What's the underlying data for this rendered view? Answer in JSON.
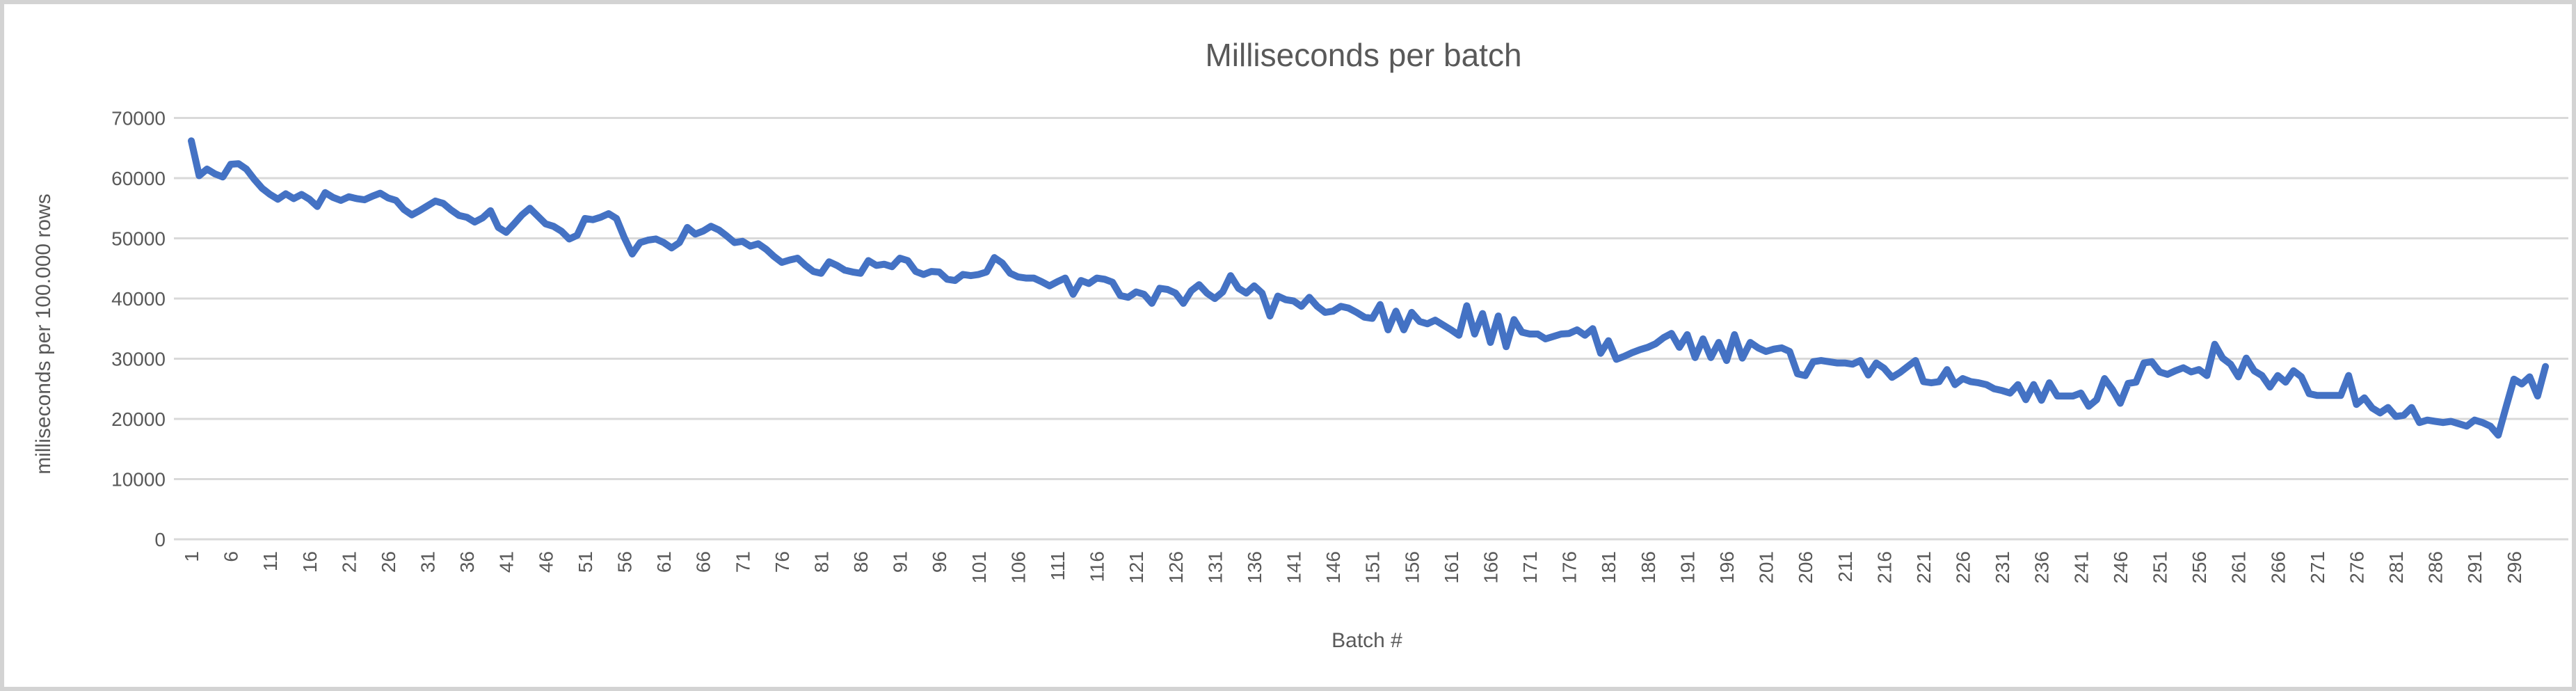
{
  "chart_data": {
    "type": "line",
    "title": "Milliseconds per batch",
    "xlabel": "Batch #",
    "ylabel": "milliseconds per 100.000 rows",
    "legend": "none",
    "grid": "horizontal",
    "ylim": [
      0,
      70000
    ],
    "y_ticks": [
      0,
      10000,
      20000,
      30000,
      40000,
      50000,
      60000,
      70000
    ],
    "x_tick_step": 5,
    "x_tick_labels": [
      "1",
      "6",
      "11",
      "16",
      "21",
      "26",
      "31",
      "36",
      "41",
      "46",
      "51",
      "56",
      "61",
      "66",
      "71",
      "76",
      "81",
      "86",
      "91",
      "96",
      "101",
      "106",
      "111",
      "116",
      "121",
      "126",
      "131",
      "136",
      "141",
      "146",
      "151",
      "156",
      "161",
      "166",
      "171",
      "176",
      "181",
      "186",
      "191",
      "196",
      "201",
      "206",
      "211",
      "216",
      "221",
      "226",
      "231",
      "236",
      "241",
      "246",
      "251",
      "256",
      "261",
      "266",
      "271",
      "276",
      "281",
      "286",
      "291",
      "296"
    ],
    "series": [
      {
        "name": "milliseconds per batch",
        "x_start": 1,
        "values": [
          66200,
          60400,
          61500,
          60700,
          60200,
          62300,
          62400,
          61500,
          59800,
          58300,
          57300,
          56500,
          57400,
          56600,
          57300,
          56500,
          55300,
          57600,
          56800,
          56300,
          56900,
          56600,
          56400,
          57000,
          57500,
          56700,
          56300,
          54800,
          53900,
          54600,
          55400,
          56200,
          55800,
          54700,
          53800,
          53500,
          52700,
          53400,
          54600,
          51800,
          51000,
          52400,
          53900,
          55000,
          53700,
          52400,
          52000,
          51200,
          49900,
          50500,
          53300,
          53100,
          53500,
          54100,
          53300,
          50100,
          47400,
          49300,
          49700,
          49900,
          49300,
          48400,
          49300,
          51800,
          50700,
          51200,
          52000,
          51400,
          50400,
          49300,
          49500,
          48700,
          49100,
          48200,
          47000,
          46000,
          46400,
          46700,
          45500,
          44500,
          44200,
          46100,
          45500,
          44700,
          44400,
          44200,
          46300,
          45500,
          45700,
          45300,
          46700,
          46300,
          44500,
          44000,
          44500,
          44400,
          43200,
          43000,
          44000,
          43800,
          44000,
          44400,
          46800,
          45900,
          44200,
          43600,
          43400,
          43400,
          42800,
          42100,
          42800,
          43400,
          40700,
          43000,
          42500,
          43400,
          43200,
          42700,
          40500,
          40200,
          41100,
          40700,
          39200,
          41700,
          41500,
          40900,
          39200,
          41300,
          42300,
          40900,
          40000,
          41100,
          43800,
          41700,
          40900,
          42100,
          40900,
          37100,
          40400,
          39800,
          39600,
          38700,
          40200,
          38700,
          37700,
          37900,
          38700,
          38400,
          37700,
          36900,
          36700,
          39000,
          34800,
          37900,
          34800,
          37700,
          36200,
          35800,
          36400,
          35600,
          34800,
          33900,
          38800,
          34100,
          37500,
          32700,
          37100,
          32000,
          36500,
          34400,
          34100,
          34100,
          33300,
          33700,
          34100,
          34200,
          34800,
          33900,
          35000,
          30900,
          33000,
          29900,
          30400,
          31000,
          31500,
          31900,
          32500,
          33500,
          34200,
          31900,
          34000,
          30200,
          33300,
          30200,
          32700,
          29700,
          34000,
          30100,
          32700,
          31800,
          31200,
          31600,
          31800,
          31200,
          27500,
          27200,
          29500,
          29700,
          29500,
          29300,
          29300,
          29100,
          29700,
          27300,
          29300,
          28400,
          26900,
          27700,
          28700,
          29700,
          26200,
          26000,
          26200,
          28200,
          25700,
          26700,
          26200,
          26000,
          25700,
          25000,
          24700,
          24300,
          25700,
          23200,
          25700,
          23100,
          26000,
          23800,
          23800,
          23800,
          24300,
          22100,
          23200,
          26700,
          24900,
          22600,
          25900,
          26100,
          29300,
          29500,
          27800,
          27400,
          28000,
          28500,
          27800,
          28200,
          27200,
          32400,
          30100,
          29100,
          27000,
          30100,
          28000,
          27200,
          25300,
          27200,
          26100,
          28000,
          27000,
          24200,
          23900,
          23900,
          23900,
          23900,
          27200,
          22400,
          23500,
          21800,
          21000,
          21900,
          20400,
          20600,
          21900,
          19400,
          19800,
          19600,
          19400,
          19600,
          19200,
          18800,
          19800,
          19400,
          18800,
          17300,
          22000,
          26600,
          25800,
          27000,
          23800,
          28700
        ]
      }
    ],
    "colors": {
      "line": "#4472C4",
      "gridline": "#D9D9D9",
      "axis_line": "#D9D9D9",
      "text": "#595959",
      "background": "#FFFFFF",
      "frame_border": "#D3D3D3"
    }
  }
}
